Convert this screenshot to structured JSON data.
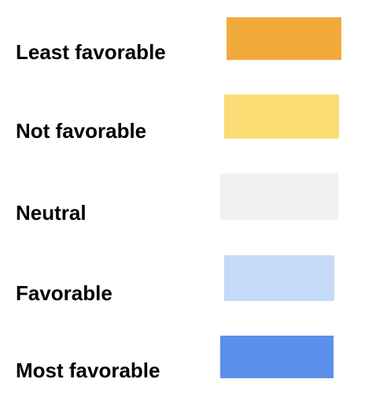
{
  "legend": {
    "items": [
      {
        "label": "Least favorable",
        "color": "#f2a93b"
      },
      {
        "label": "Not favorable",
        "color": "#f9dc74"
      },
      {
        "label": "Neutral",
        "color": "#f1f1f1"
      },
      {
        "label": "Favorable",
        "color": "#c5dbf7"
      },
      {
        "label": "Most favorable",
        "color": "#5b8fe9"
      }
    ]
  }
}
